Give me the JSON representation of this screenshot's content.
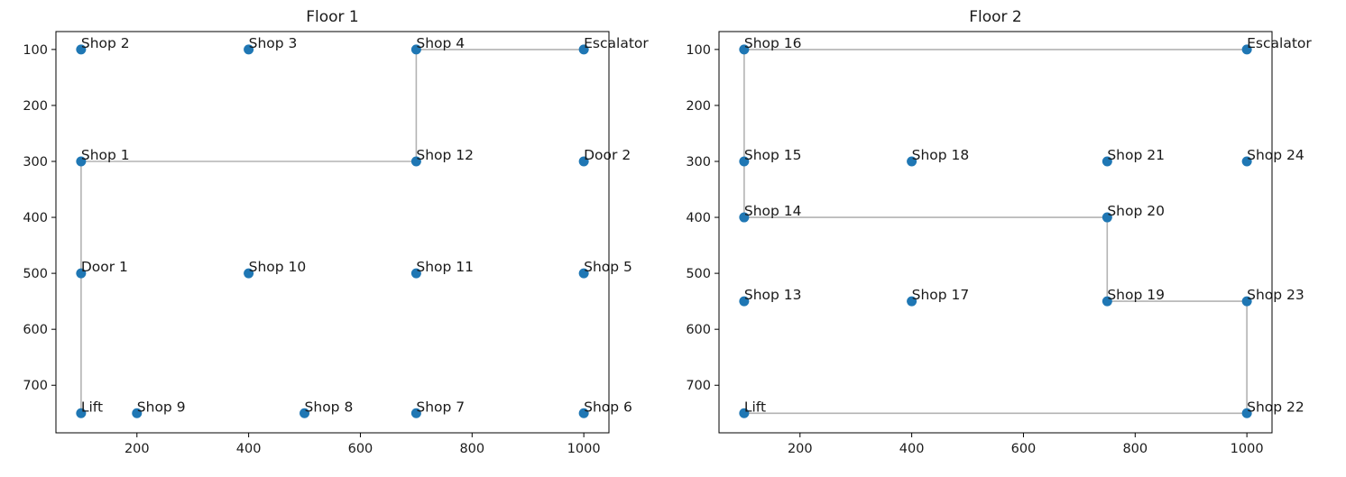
{
  "chart_data": [
    {
      "type": "scatter",
      "title": "Floor 1",
      "xlim": [
        55,
        1045
      ],
      "ylim": [
        785,
        68
      ],
      "y_inverted": true,
      "grid": false,
      "xticks": [
        200,
        400,
        600,
        800,
        1000
      ],
      "yticks": [
        100,
        200,
        300,
        400,
        500,
        600,
        700
      ],
      "marker_color": "#1f77b4",
      "path_color": "#a6a6a6",
      "points": [
        {
          "label": "Shop 2",
          "x": 100,
          "y": 100
        },
        {
          "label": "Shop 3",
          "x": 400,
          "y": 100
        },
        {
          "label": "Shop 4",
          "x": 700,
          "y": 100
        },
        {
          "label": "Escalator",
          "x": 1000,
          "y": 100
        },
        {
          "label": "Shop 1",
          "x": 100,
          "y": 300
        },
        {
          "label": "Shop 12",
          "x": 700,
          "y": 300
        },
        {
          "label": "Door 2",
          "x": 1000,
          "y": 300
        },
        {
          "label": "Door 1",
          "x": 100,
          "y": 500
        },
        {
          "label": "Shop 10",
          "x": 400,
          "y": 500
        },
        {
          "label": "Shop 11",
          "x": 700,
          "y": 500
        },
        {
          "label": "Shop 5",
          "x": 1000,
          "y": 500
        },
        {
          "label": "Lift",
          "x": 100,
          "y": 750
        },
        {
          "label": "Shop 9",
          "x": 200,
          "y": 750
        },
        {
          "label": "Shop 8",
          "x": 500,
          "y": 750
        },
        {
          "label": "Shop 7",
          "x": 700,
          "y": 750
        },
        {
          "label": "Shop 6",
          "x": 1000,
          "y": 750
        }
      ],
      "path": [
        [
          100,
          750
        ],
        [
          100,
          500
        ],
        [
          100,
          300
        ],
        [
          700,
          300
        ],
        [
          700,
          100
        ],
        [
          1000,
          100
        ]
      ]
    },
    {
      "type": "scatter",
      "title": "Floor 2",
      "xlim": [
        55,
        1045
      ],
      "ylim": [
        785,
        68
      ],
      "y_inverted": true,
      "grid": false,
      "xticks": [
        200,
        400,
        600,
        800,
        1000
      ],
      "yticks": [
        100,
        200,
        300,
        400,
        500,
        600,
        700
      ],
      "marker_color": "#1f77b4",
      "path_color": "#a6a6a6",
      "points": [
        {
          "label": "Shop 16",
          "x": 100,
          "y": 100
        },
        {
          "label": "Escalator",
          "x": 1000,
          "y": 100
        },
        {
          "label": "Shop 15",
          "x": 100,
          "y": 300
        },
        {
          "label": "Shop 18",
          "x": 400,
          "y": 300
        },
        {
          "label": "Shop 21",
          "x": 750,
          "y": 300
        },
        {
          "label": "Shop 24",
          "x": 1000,
          "y": 300
        },
        {
          "label": "Shop 14",
          "x": 100,
          "y": 400
        },
        {
          "label": "Shop 20",
          "x": 750,
          "y": 400
        },
        {
          "label": "Shop 13",
          "x": 100,
          "y": 550
        },
        {
          "label": "Shop 17",
          "x": 400,
          "y": 550
        },
        {
          "label": "Shop 19",
          "x": 750,
          "y": 550
        },
        {
          "label": "Shop 23",
          "x": 1000,
          "y": 550
        },
        {
          "label": "Lift",
          "x": 100,
          "y": 750
        },
        {
          "label": "Shop 22",
          "x": 1000,
          "y": 750
        }
      ],
      "path": [
        [
          1000,
          100
        ],
        [
          100,
          100
        ],
        [
          100,
          300
        ],
        [
          100,
          400
        ],
        [
          750,
          400
        ],
        [
          750,
          550
        ],
        [
          1000,
          550
        ],
        [
          1000,
          750
        ],
        [
          100,
          750
        ]
      ]
    }
  ]
}
